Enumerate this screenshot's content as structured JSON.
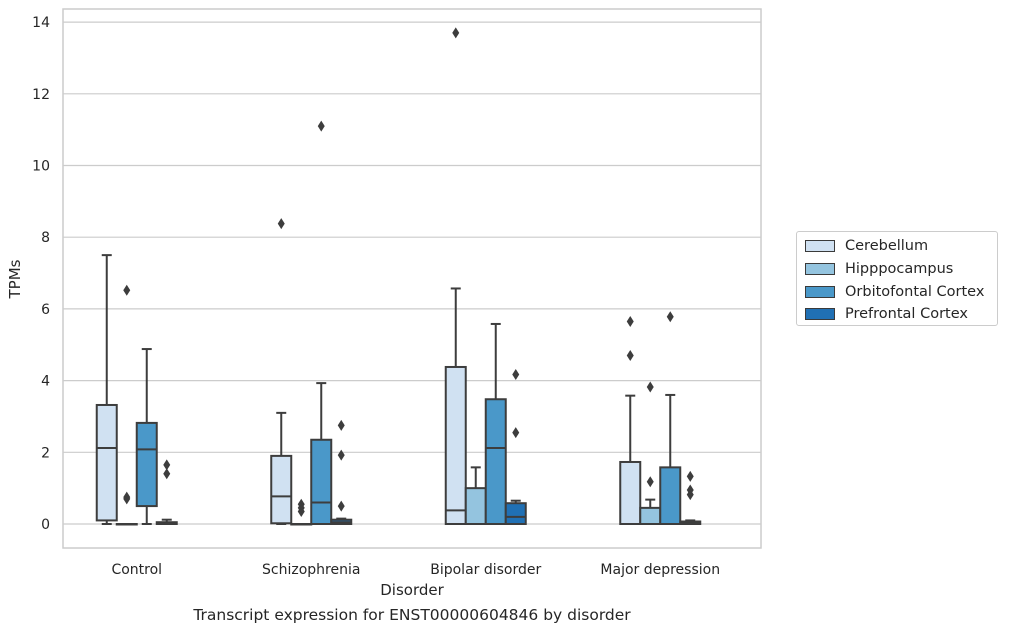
{
  "chart_data": {
    "type": "box",
    "title": "",
    "caption": "Transcript expression for ENST00000604846 by disorder",
    "xlabel": "Disorder",
    "ylabel": "TPMs",
    "ylim": [
      -0.65,
      14.4
    ],
    "yticks": [
      "0",
      "2",
      "4",
      "6",
      "8",
      "10",
      "12",
      "14"
    ],
    "ytick_values": [
      0,
      2,
      4,
      6,
      8,
      10,
      12,
      14
    ],
    "grid": true,
    "legend_position": "right",
    "categories": [
      "Control",
      "Schizophrenia",
      "Bipolar disorder",
      "Major depression"
    ],
    "series": [
      {
        "name": "Cerebellum",
        "color": "#d0e1f2",
        "boxes": [
          {
            "whisker_low": 0.0,
            "q1": 0.1,
            "median": 2.12,
            "q3": 3.32,
            "whisker_high": 7.5,
            "outliers": []
          },
          {
            "whisker_low": 0.0,
            "q1": 0.02,
            "median": 0.77,
            "q3": 1.9,
            "whisker_high": 3.1,
            "outliers": [
              8.38
            ]
          },
          {
            "whisker_low": 0.0,
            "q1": 0.0,
            "median": 0.38,
            "q3": 4.38,
            "whisker_high": 6.57,
            "outliers": [
              13.7
            ]
          },
          {
            "whisker_low": 0.0,
            "q1": 0.0,
            "median": 0.0,
            "q3": 1.73,
            "whisker_high": 3.58,
            "outliers": [
              4.7,
              5.65
            ]
          }
        ]
      },
      {
        "name": "Hipppocampus",
        "color": "#94c4df",
        "boxes": [
          {
            "whisker_low": 0.0,
            "q1": 0.0,
            "median": 0.0,
            "q3": 0.0,
            "whisker_high": 0.0,
            "outliers": [
              0.7,
              0.75,
              6.52
            ]
          },
          {
            "whisker_low": 0.0,
            "q1": 0.0,
            "median": 0.0,
            "q3": 0.0,
            "whisker_high": 0.0,
            "outliers": [
              0.35,
              0.45,
              0.55
            ]
          },
          {
            "whisker_low": 0.0,
            "q1": 0.0,
            "median": 0.0,
            "q3": 1.0,
            "whisker_high": 1.58,
            "outliers": []
          },
          {
            "whisker_low": 0.0,
            "q1": 0.0,
            "median": 0.0,
            "q3": 0.45,
            "whisker_high": 0.68,
            "outliers": [
              1.18,
              3.82
            ]
          }
        ]
      },
      {
        "name": "Orbitofontal Cortex",
        "color": "#4a98c9",
        "boxes": [
          {
            "whisker_low": 0.0,
            "q1": 0.5,
            "median": 2.08,
            "q3": 2.82,
            "whisker_high": 4.88,
            "outliers": []
          },
          {
            "whisker_low": 0.0,
            "q1": 0.0,
            "median": 0.6,
            "q3": 2.35,
            "whisker_high": 3.93,
            "outliers": [
              11.1
            ]
          },
          {
            "whisker_low": 0.0,
            "q1": 0.0,
            "median": 2.12,
            "q3": 3.48,
            "whisker_high": 5.58,
            "outliers": []
          },
          {
            "whisker_low": 0.0,
            "q1": 0.0,
            "median": 0.0,
            "q3": 1.58,
            "whisker_high": 3.6,
            "outliers": [
              5.78
            ]
          }
        ]
      },
      {
        "name": "Prefrontal Cortex",
        "color": "#2070b4",
        "boxes": [
          {
            "whisker_low": 0.0,
            "q1": 0.0,
            "median": 0.02,
            "q3": 0.05,
            "whisker_high": 0.12,
            "outliers": [
              1.4,
              1.65
            ]
          },
          {
            "whisker_low": 0.0,
            "q1": 0.0,
            "median": 0.05,
            "q3": 0.12,
            "whisker_high": 0.15,
            "outliers": [
              0.5,
              1.92,
              2.75
            ]
          },
          {
            "whisker_low": 0.0,
            "q1": 0.0,
            "median": 0.2,
            "q3": 0.58,
            "whisker_high": 0.65,
            "outliers": [
              2.55,
              4.17
            ]
          },
          {
            "whisker_low": 0.0,
            "q1": 0.0,
            "median": 0.02,
            "q3": 0.07,
            "whisker_high": 0.1,
            "outliers": [
              0.82,
              0.95,
              1.33
            ]
          }
        ]
      }
    ]
  }
}
